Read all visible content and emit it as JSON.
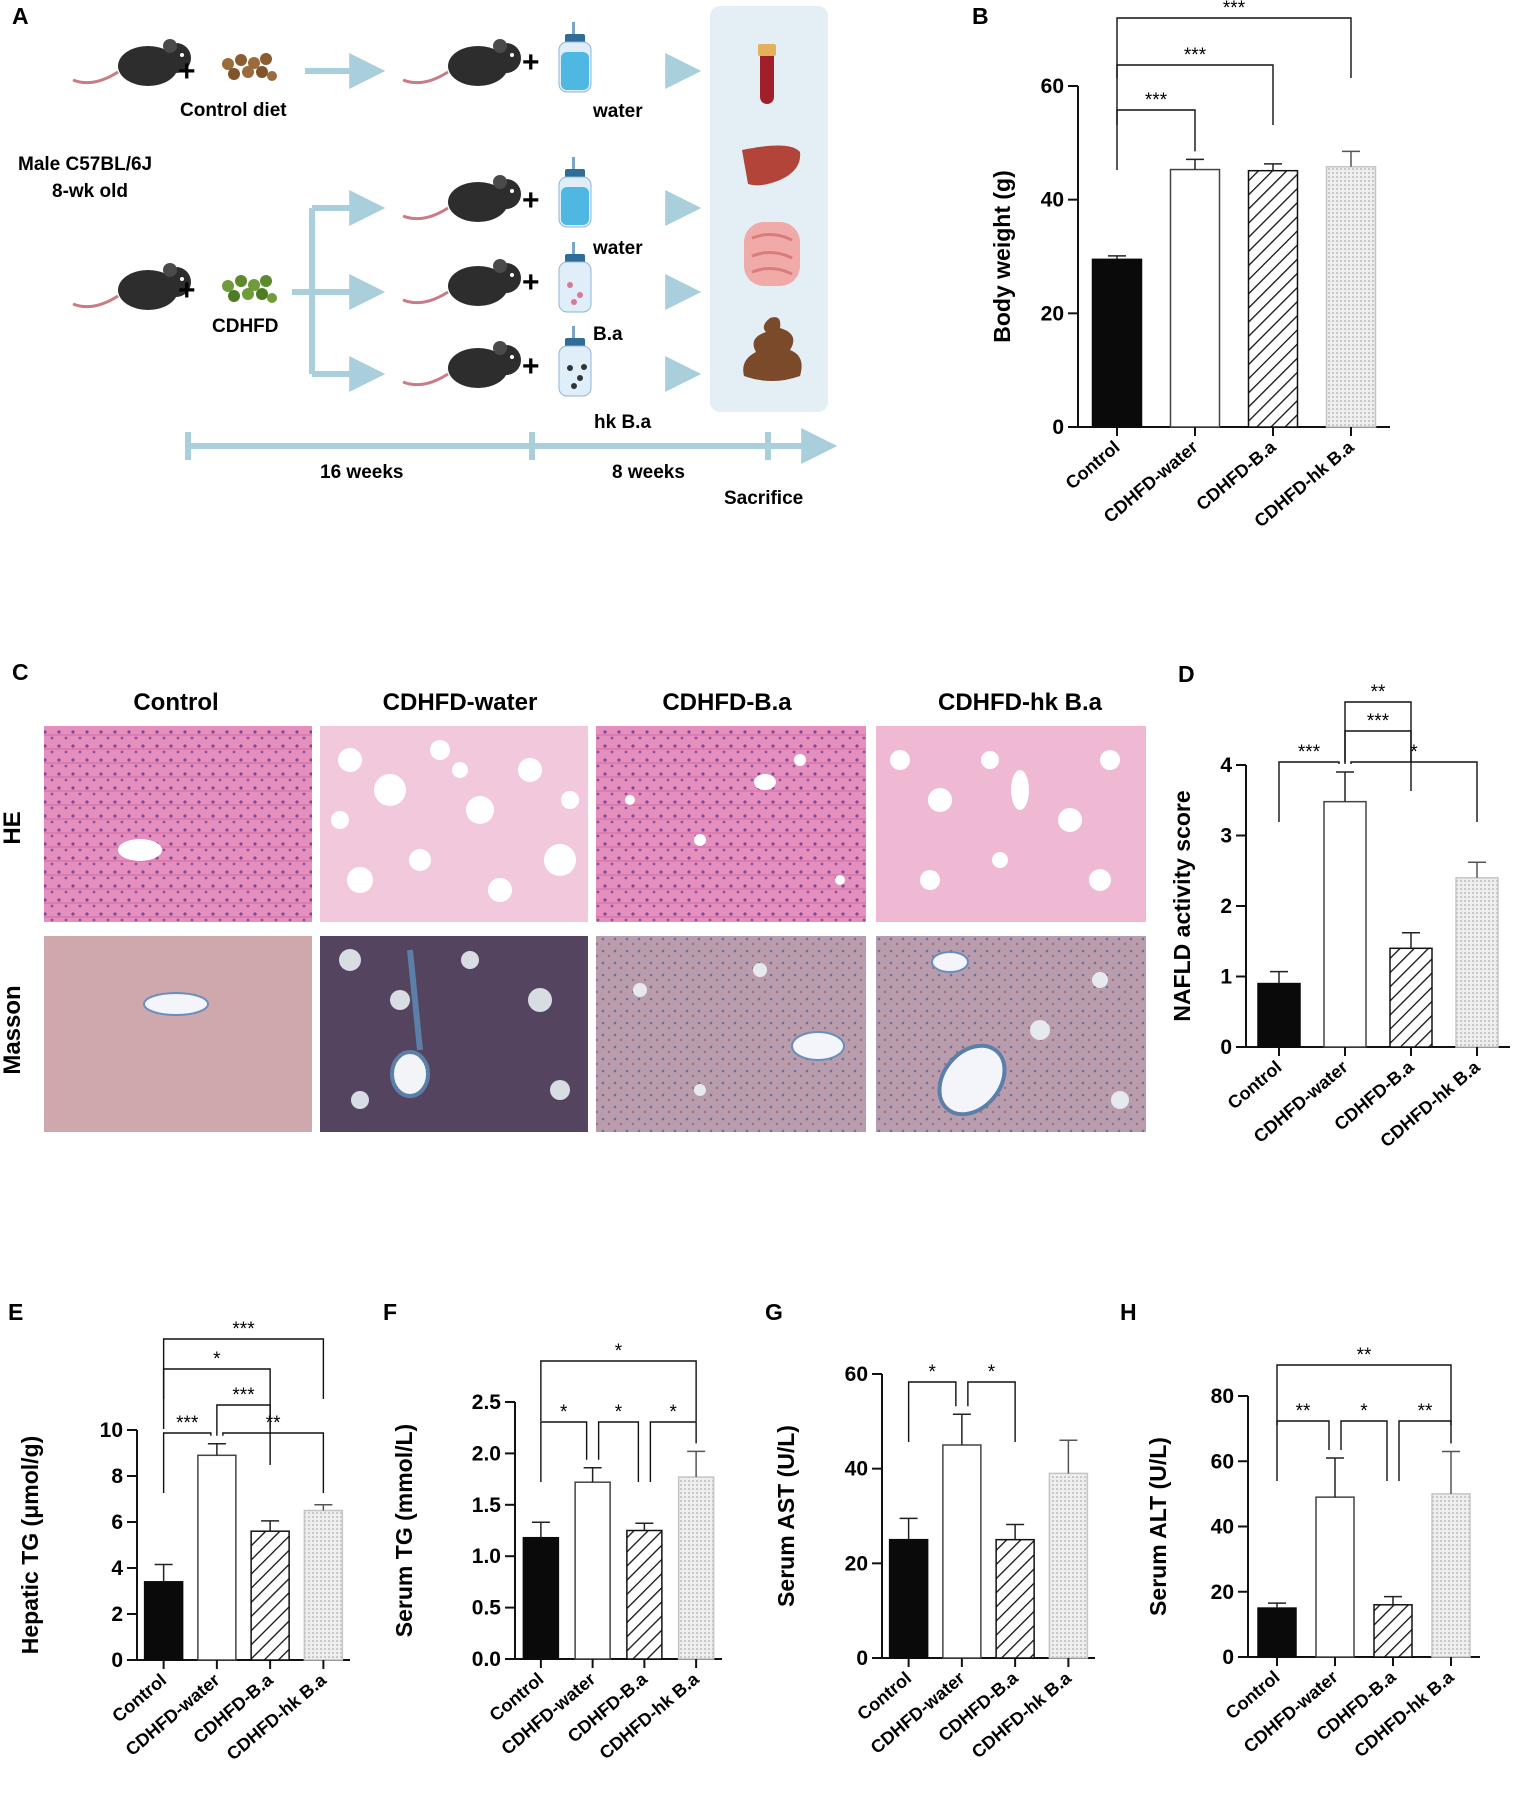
{
  "colors": {
    "accent_arrow": "#a9cfdc",
    "panel_bg": "#e4eef5",
    "black_bar": "#0a0a0a",
    "grey_bar": "#d8d8d8",
    "he_pink": "#e58fbc",
    "masson_blue": "#5b7fa8"
  },
  "schematic": {
    "panel_label": "A",
    "control_diet": "Control diet",
    "mouse_strain": "Male C57BL/6J",
    "mouse_age": "8-wk old",
    "cdhfd": "CDHFD",
    "water_1": "water",
    "water_2": "water",
    "ba": "B.a",
    "hk_ba": "hk B.a",
    "period_1": "16 weeks",
    "period_2": "8 weeks",
    "sacrifice": "Sacrifice",
    "icons": [
      "mouse-icon",
      "food-pellets-icon",
      "bottle-icon",
      "blood-tube-icon",
      "liver-icon",
      "intestine-icon",
      "feces-icon"
    ]
  },
  "histology": {
    "panel_label": "C",
    "columns": [
      "Control",
      "CDHFD-water",
      "CDHFD-B.a",
      "CDHFD-hk B.a"
    ],
    "rows": [
      "HE",
      "Masson"
    ]
  },
  "chart_data": [
    {
      "panel": "B",
      "type": "bar",
      "ylabel": "Body weight (g)",
      "ylim": [
        0,
        60
      ],
      "yticks": [
        0,
        20,
        40,
        60
      ],
      "categories": [
        "Control",
        "CDHFD-water",
        "CDHFD-B.a",
        "CDHFD-hk B.a"
      ],
      "values": [
        29.5,
        45.3,
        45.1,
        45.8
      ],
      "errors": [
        0.6,
        1.8,
        1.2,
        2.7
      ],
      "tick_labels": [
        "0",
        "20",
        "40",
        "60"
      ],
      "significance": [
        {
          "from": 0,
          "to": 1,
          "label": "***"
        },
        {
          "from": 0,
          "to": 2,
          "label": "***"
        },
        {
          "from": 0,
          "to": 3,
          "label": "***"
        }
      ]
    },
    {
      "panel": "D",
      "type": "bar",
      "ylabel": "NAFLD activity score",
      "ylim": [
        0,
        4
      ],
      "yticks": [
        0,
        1,
        2,
        3,
        4
      ],
      "categories": [
        "Control",
        "CDHFD-water",
        "CDHFD-B.a",
        "CDHFD-hk B.a"
      ],
      "values": [
        0.9,
        3.48,
        1.4,
        2.4
      ],
      "errors": [
        0.17,
        0.42,
        0.22,
        0.22
      ],
      "tick_labels": [
        "0",
        "1",
        "2",
        "3",
        "4"
      ],
      "significance": [
        {
          "from": 0,
          "to": 1,
          "label": "***"
        },
        {
          "from": 1,
          "to": 2,
          "label": "***"
        },
        {
          "from": 1,
          "to": 2,
          "label": "**"
        },
        {
          "from": 1,
          "to": 3,
          "label": "*"
        }
      ]
    },
    {
      "panel": "E",
      "type": "bar",
      "ylabel": "Hepatic TG (μmol/g)",
      "ylim": [
        0,
        10
      ],
      "yticks": [
        0,
        2,
        4,
        6,
        8,
        10
      ],
      "categories": [
        "Control",
        "CDHFD-water",
        "CDHFD-B.a",
        "CDHFD-hk B.a"
      ],
      "values": [
        3.4,
        8.9,
        5.6,
        6.5
      ],
      "errors": [
        0.75,
        0.5,
        0.45,
        0.25
      ],
      "tick_labels": [
        "0",
        "2",
        "4",
        "6",
        "8",
        "10"
      ],
      "significance": [
        {
          "from": 0,
          "to": 1,
          "label": "***"
        },
        {
          "from": 1,
          "to": 3,
          "label": "**"
        },
        {
          "from": 1,
          "to": 2,
          "label": "***"
        },
        {
          "from": 0,
          "to": 2,
          "label": "*"
        },
        {
          "from": 0,
          "to": 3,
          "label": "***"
        }
      ]
    },
    {
      "panel": "F",
      "type": "bar",
      "ylabel": "Serum TG (mmol/L)",
      "ylim": [
        0,
        2.5
      ],
      "yticks": [
        0,
        0.5,
        1.0,
        1.5,
        2.0,
        2.5
      ],
      "categories": [
        "Control",
        "CDHFD-water",
        "CDHFD-B.a",
        "CDHFD-hk B.a"
      ],
      "values": [
        1.18,
        1.72,
        1.25,
        1.77
      ],
      "errors": [
        0.15,
        0.14,
        0.07,
        0.25
      ],
      "tick_labels": [
        "0.0",
        "0.5",
        "1.0",
        "1.5",
        "2.0",
        "2.5"
      ],
      "significance": [
        {
          "from": 0,
          "to": 1,
          "label": "*"
        },
        {
          "from": 1,
          "to": 2,
          "label": "*"
        },
        {
          "from": 2,
          "to": 3,
          "label": "*"
        },
        {
          "from": 0,
          "to": 3,
          "label": "*"
        }
      ]
    },
    {
      "panel": "G",
      "type": "bar",
      "ylabel": "Serum AST (U/L)",
      "ylim": [
        0,
        60
      ],
      "yticks": [
        0,
        20,
        40,
        60
      ],
      "categories": [
        "Control",
        "CDHFD-water",
        "CDHFD-B.a",
        "CDHFD-hk B.a"
      ],
      "values": [
        25,
        45,
        25,
        39
      ],
      "errors": [
        4.5,
        6.5,
        3.2,
        7
      ],
      "tick_labels": [
        "0",
        "20",
        "40",
        "60"
      ],
      "significance": [
        {
          "from": 0,
          "to": 1,
          "label": "*"
        },
        {
          "from": 1,
          "to": 2,
          "label": "*"
        }
      ]
    },
    {
      "panel": "H",
      "type": "bar",
      "ylabel": "Serum ALT (U/L)",
      "ylim": [
        0,
        80
      ],
      "yticks": [
        0,
        20,
        40,
        60,
        80
      ],
      "categories": [
        "Control",
        "CDHFD-water",
        "CDHFD-B.a",
        "CDHFD-hk B.a"
      ],
      "values": [
        15,
        49,
        16,
        50
      ],
      "errors": [
        1.5,
        12,
        2.5,
        13
      ],
      "tick_labels": [
        "0",
        "20",
        "40",
        "60",
        "80"
      ],
      "significance": [
        {
          "from": 0,
          "to": 1,
          "label": "**"
        },
        {
          "from": 1,
          "to": 2,
          "label": "*"
        },
        {
          "from": 2,
          "to": 3,
          "label": "**"
        },
        {
          "from": 0,
          "to": 3,
          "label": "**"
        }
      ]
    }
  ]
}
